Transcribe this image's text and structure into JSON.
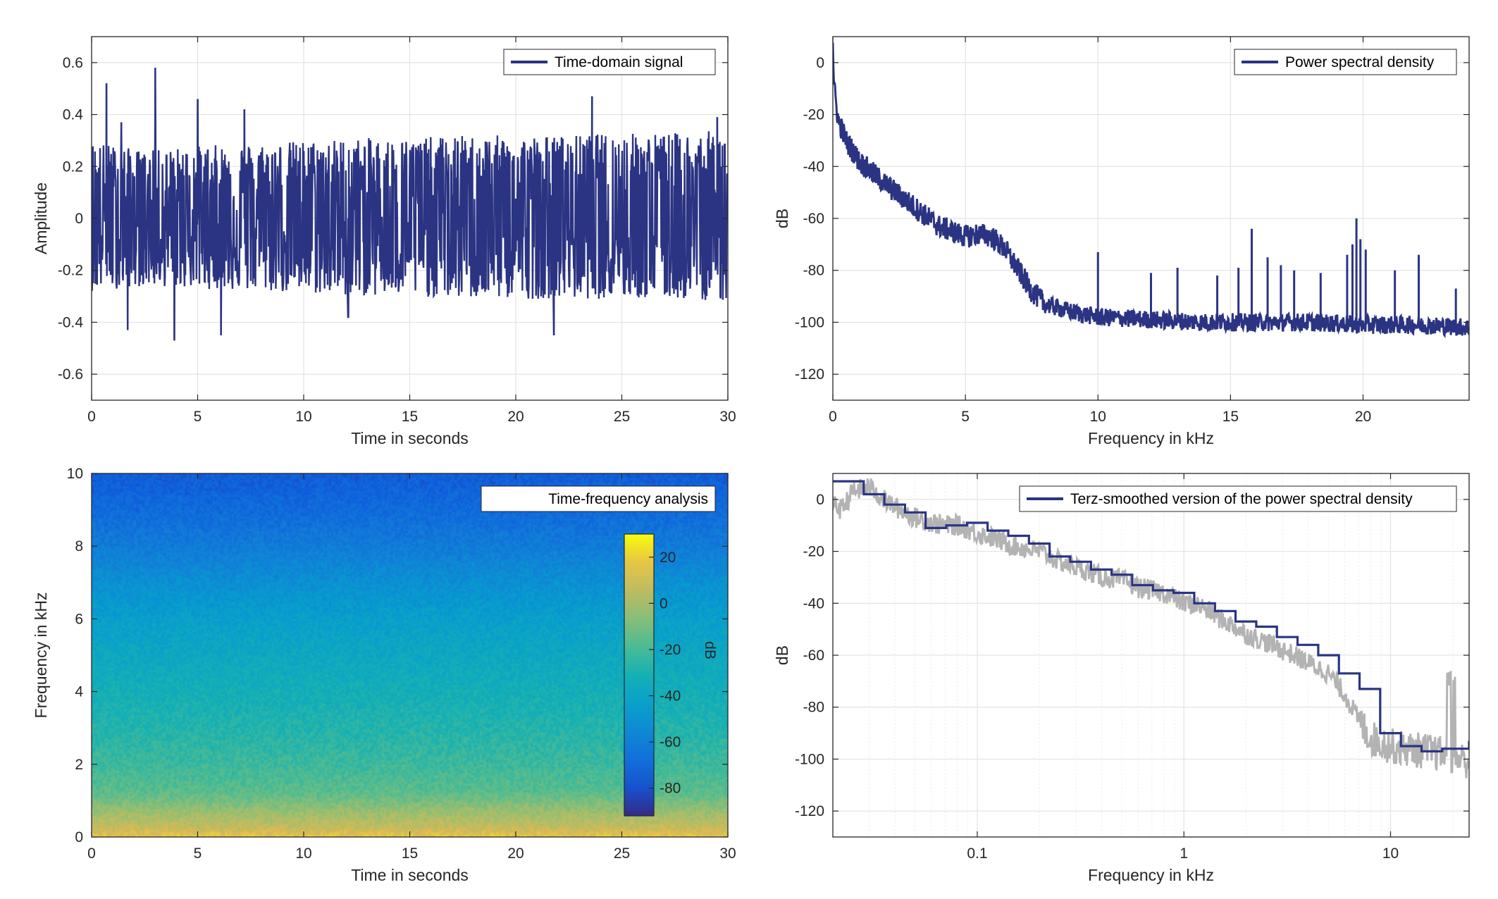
{
  "colors": {
    "signal": "#2b3482",
    "smoothed_gray": "#b3b3b3",
    "grid": "#e3e3e3",
    "axes": "#262626"
  },
  "chart_data": [
    {
      "id": "signal",
      "type": "line",
      "legend": "Time-domain signal",
      "legend_location": "top-right",
      "xlabel": "Time in seconds",
      "ylabel": "Amplitude",
      "xlim": [
        0,
        30
      ],
      "ylim": [
        -0.7,
        0.7
      ],
      "xticks": [
        0,
        5,
        10,
        15,
        20,
        25,
        30
      ],
      "xticklabels": [
        "0",
        "5",
        "10",
        "15",
        "20",
        "25",
        "30"
      ],
      "yticks": [
        -0.6,
        -0.4,
        -0.2,
        0,
        0.2,
        0.4,
        0.6
      ],
      "yticklabels": [
        "-0.6",
        "-0.4",
        "-0.2",
        "0",
        "0.2",
        "0.4",
        "0.6"
      ],
      "grid": true,
      "series": [
        {
          "name": "Time-domain signal",
          "envelope_pos": [
            0.3,
            0.26,
            0.28,
            0.29,
            0.3,
            0.31,
            0.31,
            0.32,
            0.32,
            0.32,
            0.33,
            0.33,
            0.34
          ],
          "envelope_neg": [
            -0.28,
            -0.26,
            -0.27,
            -0.28,
            -0.29,
            -0.3,
            -0.3,
            -0.31,
            -0.31,
            -0.31,
            -0.31,
            -0.31,
            -0.32
          ],
          "peaks": [
            {
              "x": 0.7,
              "y": 0.52
            },
            {
              "x": 1.4,
              "y": 0.37
            },
            {
              "x": 3.0,
              "y": 0.58
            },
            {
              "x": 5.0,
              "y": 0.46
            },
            {
              "x": 7.2,
              "y": 0.42
            },
            {
              "x": 23.6,
              "y": 0.47
            },
            {
              "x": 29.5,
              "y": 0.39
            },
            {
              "x": 1.7,
              "y": -0.43
            },
            {
              "x": 3.9,
              "y": -0.47
            },
            {
              "x": 6.1,
              "y": -0.45
            },
            {
              "x": 21.8,
              "y": -0.45
            },
            {
              "x": 12.1,
              "y": -0.38
            }
          ]
        }
      ]
    },
    {
      "id": "psd",
      "type": "line",
      "legend": "Power spectral density",
      "legend_location": "top-right",
      "xlabel": "Frequency in kHz",
      "ylabel": "dB",
      "xlim": [
        0,
        24
      ],
      "ylim": [
        -130,
        10
      ],
      "xticks": [
        0,
        5,
        10,
        15,
        20
      ],
      "xticklabels": [
        "0",
        "5",
        "10",
        "15",
        "20"
      ],
      "yticks": [
        -120,
        -100,
        -80,
        -60,
        -40,
        -20,
        0
      ],
      "yticklabels": [
        "-120",
        "-100",
        "-80",
        "-60",
        "-40",
        "-20",
        "0"
      ],
      "grid": true,
      "series": [
        {
          "name": "Power spectral density",
          "x": [
            0,
            0.05,
            0.2,
            0.5,
            1,
            2,
            3,
            4,
            5,
            5.5,
            6,
            6.5,
            7,
            7.5,
            8,
            9,
            10,
            12,
            14,
            16,
            18,
            20,
            22,
            24
          ],
          "y": [
            8,
            -10,
            -22,
            -30,
            -38,
            -47,
            -55,
            -63,
            -67,
            -66,
            -67,
            -72,
            -80,
            -88,
            -93,
            -96,
            -98,
            -99,
            -100,
            -100,
            -100,
            -101,
            -101,
            -102
          ],
          "spikes": [
            {
              "x": 10.0,
              "y": -73
            },
            {
              "x": 12.0,
              "y": -81
            },
            {
              "x": 13.0,
              "y": -79
            },
            {
              "x": 14.5,
              "y": -82
            },
            {
              "x": 15.3,
              "y": -79
            },
            {
              "x": 15.8,
              "y": -64
            },
            {
              "x": 16.4,
              "y": -75
            },
            {
              "x": 16.9,
              "y": -78
            },
            {
              "x": 17.4,
              "y": -80
            },
            {
              "x": 18.4,
              "y": -81
            },
            {
              "x": 19.4,
              "y": -74
            },
            {
              "x": 19.6,
              "y": -70
            },
            {
              "x": 19.75,
              "y": -60
            },
            {
              "x": 19.9,
              "y": -68
            },
            {
              "x": 20.1,
              "y": -72
            },
            {
              "x": 21.2,
              "y": -80
            },
            {
              "x": 22.1,
              "y": -74
            },
            {
              "x": 23.5,
              "y": -87
            }
          ]
        }
      ]
    },
    {
      "id": "spectrogram",
      "type": "heatmap",
      "legend": "Time-frequency analysis",
      "legend_location": "top-right",
      "xlabel": "Time in seconds",
      "ylabel": "Frequency in kHz",
      "xlim": [
        0,
        30
      ],
      "ylim": [
        0,
        10
      ],
      "xticks": [
        0,
        5,
        10,
        15,
        20,
        25,
        30
      ],
      "xticklabels": [
        "0",
        "5",
        "10",
        "15",
        "20",
        "25",
        "30"
      ],
      "yticks": [
        0,
        2,
        4,
        6,
        8,
        10
      ],
      "yticklabels": [
        "0",
        "2",
        "4",
        "6",
        "8",
        "10"
      ],
      "grid": false,
      "colormap": "parula",
      "colorbar": {
        "label": "dB",
        "limits": [
          -92,
          30
        ],
        "ticks": [
          -80,
          -60,
          -40,
          -20,
          0,
          20
        ],
        "ticklabels": [
          "-80",
          "-60",
          "-40",
          "-20",
          "0",
          "20"
        ],
        "location": "inside right"
      },
      "freq_profile_khz": [
        0,
        0.25,
        0.5,
        0.8,
        1.2,
        2,
        3,
        4,
        5,
        6,
        7,
        8,
        9,
        10
      ],
      "freq_profile_db": [
        18,
        8,
        2,
        -5,
        -15,
        -22,
        -28,
        -33,
        -38,
        -44,
        -52,
        -62,
        -70,
        -76
      ]
    },
    {
      "id": "terz",
      "type": "line",
      "legend": "Terz-smoothed version of the power spectral density",
      "legend_location": "top-right",
      "xlabel": "Frequency in kHz",
      "ylabel": "dB",
      "xscale": "log",
      "xlim": [
        0.02,
        24
      ],
      "ylim": [
        -130,
        10
      ],
      "xticks": [
        0.1,
        1,
        10
      ],
      "xticklabels": [
        "0.1",
        "1",
        "10"
      ],
      "yticks": [
        -120,
        -100,
        -80,
        -60,
        -40,
        -20,
        0
      ],
      "yticklabels": [
        "-120",
        "-100",
        "-80",
        "-60",
        "-40",
        "-20",
        "0"
      ],
      "grid": true,
      "series": [
        {
          "x": [
            0.02,
            0.022,
            0.025,
            0.03,
            0.035,
            0.04,
            0.05,
            0.06,
            0.07,
            0.08,
            0.1,
            0.12,
            0.15,
            0.2,
            0.25,
            0.3,
            0.4,
            0.5,
            0.6,
            0.8,
            1,
            1.2,
            1.5,
            2,
            2.5,
            3,
            4,
            5,
            6,
            7,
            8,
            10,
            12,
            15,
            20,
            24
          ],
          "y": [
            -2,
            -4,
            3,
            5,
            0,
            -3,
            -7,
            -9,
            -10,
            -10,
            -13,
            -15,
            -18,
            -20,
            -24,
            -26,
            -30,
            -31,
            -34,
            -36,
            -40,
            -41,
            -46,
            -52,
            -55,
            -58,
            -63,
            -67,
            -75,
            -85,
            -92,
            -95,
            -96,
            -97,
            -99,
            -101
          ]
        },
        {
          "name": "Terz-smoothed version of the power spectral density",
          "edges": [
            0.02,
            0.0282,
            0.0355,
            0.0447,
            0.0562,
            0.0708,
            0.0891,
            0.1122,
            0.1413,
            0.1778,
            0.2239,
            0.2818,
            0.3548,
            0.4467,
            0.5623,
            0.7079,
            0.8913,
            1.122,
            1.413,
            1.778,
            2.239,
            2.818,
            3.548,
            4.467,
            5.623,
            7.079,
            8.913,
            11.22,
            14.13,
            17.78,
            24
          ],
          "levels": [
            7,
            2,
            -2,
            -5,
            -11,
            -10,
            -9,
            -12,
            -14,
            -17,
            -22,
            -24,
            -27,
            -29,
            -33,
            -35,
            -36,
            -40,
            -43,
            -47,
            -49,
            -53,
            -56,
            -60,
            -67,
            -73,
            -90,
            -95,
            -97,
            -96,
            -93
          ]
        }
      ]
    }
  ]
}
